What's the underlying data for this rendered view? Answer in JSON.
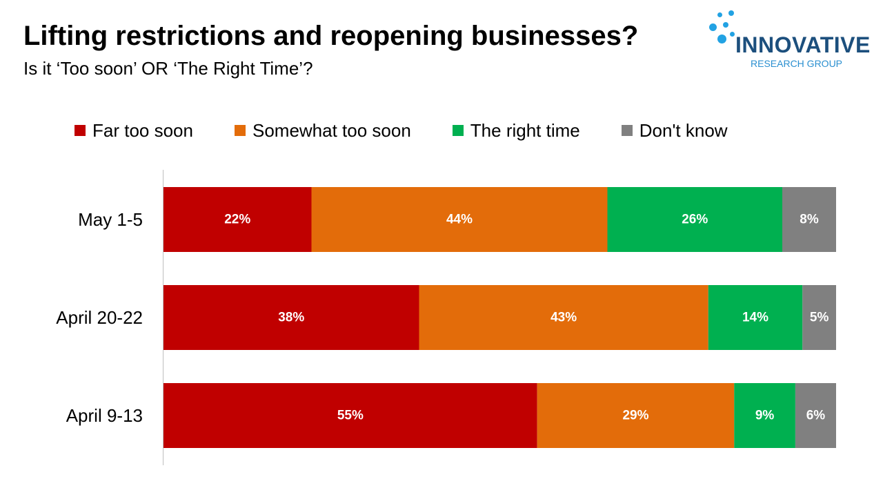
{
  "header": {
    "title": "Lifting restrictions and reopening businesses?",
    "subtitle": "Is it ‘Too soon’ OR ‘The Right Time’?"
  },
  "logo": {
    "name": "INNOVATIVE",
    "tagline": "RESEARCH GROUP",
    "icon": "dots-logo-icon"
  },
  "legend": [
    {
      "label": "Far too soon",
      "color": "#c00000"
    },
    {
      "label": "Somewhat too soon",
      "color": "#e36c0a"
    },
    {
      "label": "The right time",
      "color": "#00b050"
    },
    {
      "label": "Don't know",
      "color": "#808080"
    }
  ],
  "chart_data": {
    "type": "bar",
    "orientation": "horizontal",
    "stacked": true,
    "categories": [
      "May 1-5",
      "April 20-22",
      "April 9-13"
    ],
    "series": [
      {
        "name": "Far too soon",
        "color": "#c00000",
        "values": [
          22,
          38,
          55
        ],
        "labels": [
          "22%",
          "38%",
          "55%"
        ]
      },
      {
        "name": "Somewhat too soon",
        "color": "#e36c0a",
        "values": [
          44,
          43,
          29
        ],
        "labels": [
          "44%",
          "43%",
          "29%"
        ]
      },
      {
        "name": "The right time",
        "color": "#00b050",
        "values": [
          26,
          14,
          9
        ],
        "labels": [
          "26%",
          "14%",
          "9%"
        ]
      },
      {
        "name": "Don't know",
        "color": "#808080",
        "values": [
          8,
          5,
          6
        ],
        "labels": [
          "8%",
          "5%",
          "6%"
        ]
      }
    ],
    "title": "Lifting restrictions and reopening businesses?",
    "subtitle": "Is it ‘Too soon’ OR ‘The Right Time’?",
    "legend_position": "top",
    "grid": false
  }
}
